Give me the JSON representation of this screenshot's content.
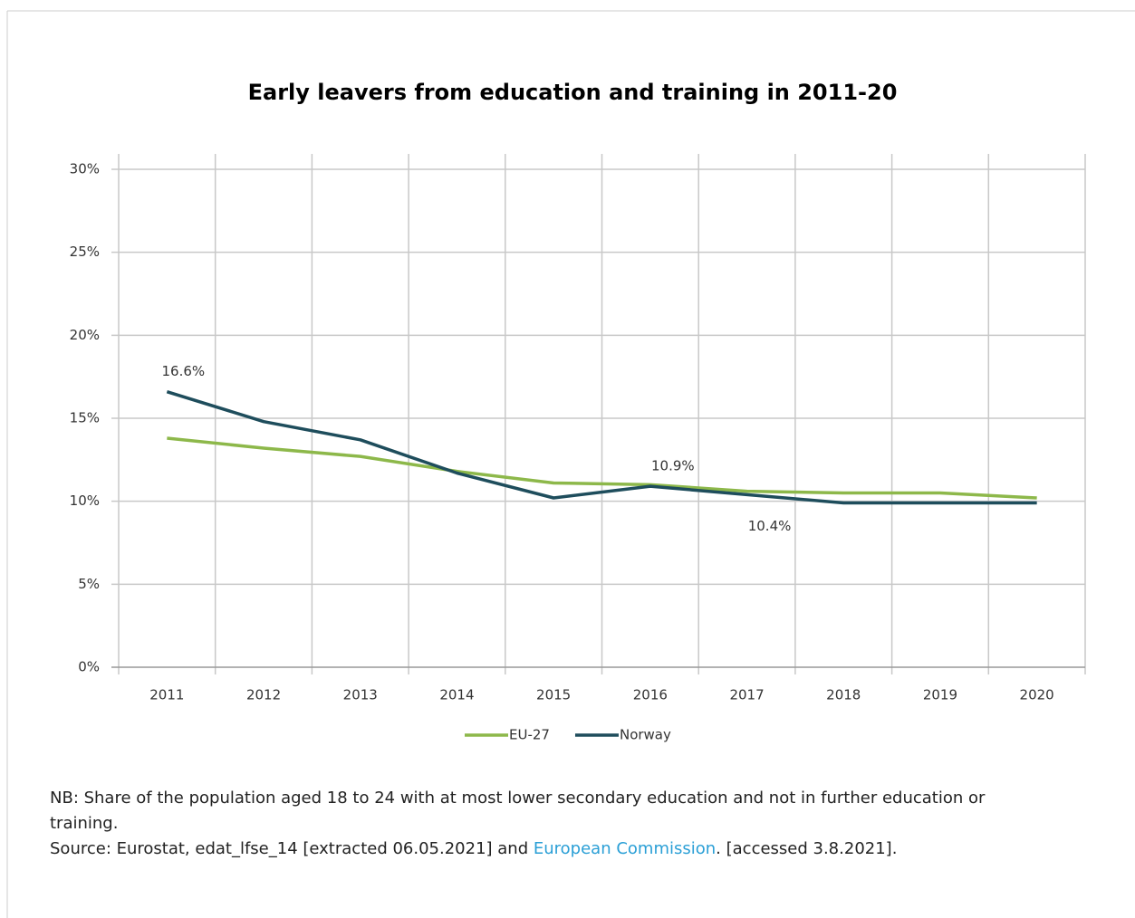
{
  "chart_data": {
    "type": "line",
    "title": "Early leavers from education and training in 2011-20",
    "categories": [
      "2011",
      "2012",
      "2013",
      "2014",
      "2015",
      "2016",
      "2017",
      "2018",
      "2019",
      "2020"
    ],
    "series": [
      {
        "name": "EU-27",
        "color": "#8db84a",
        "values": [
          13.8,
          13.2,
          12.7,
          11.8,
          11.1,
          11.0,
          10.6,
          10.5,
          10.5,
          10.2
        ]
      },
      {
        "name": "Norway",
        "color": "#1e4d5c",
        "values": [
          16.6,
          14.8,
          13.7,
          11.7,
          10.2,
          10.9,
          10.4,
          9.9,
          9.9,
          9.9
        ],
        "value_labels": [
          "16.6%",
          null,
          null,
          null,
          null,
          "10.9%",
          "10.4%",
          null,
          null,
          null
        ]
      }
    ],
    "ylim": [
      0,
      30
    ],
    "yticks": [
      {
        "value": 0,
        "label": "0%"
      },
      {
        "value": 5,
        "label": "5%"
      },
      {
        "value": 10,
        "label": "10%"
      },
      {
        "value": 15,
        "label": "15%"
      },
      {
        "value": 20,
        "label": "20%"
      },
      {
        "value": 25,
        "label": "25%"
      },
      {
        "value": 30,
        "label": "30%"
      }
    ],
    "grid": true,
    "legend": "bottom"
  },
  "notes": {
    "nb": "NB: Share of the population aged 18 to 24 with at most lower secondary education and not in further education or training.",
    "source_prefix": "Source: Eurostat, edat_lfse_14 [extracted 06.05.2021] and ",
    "source_link": "European Commission",
    "source_suffix": ". [accessed 3.8.2021]."
  }
}
